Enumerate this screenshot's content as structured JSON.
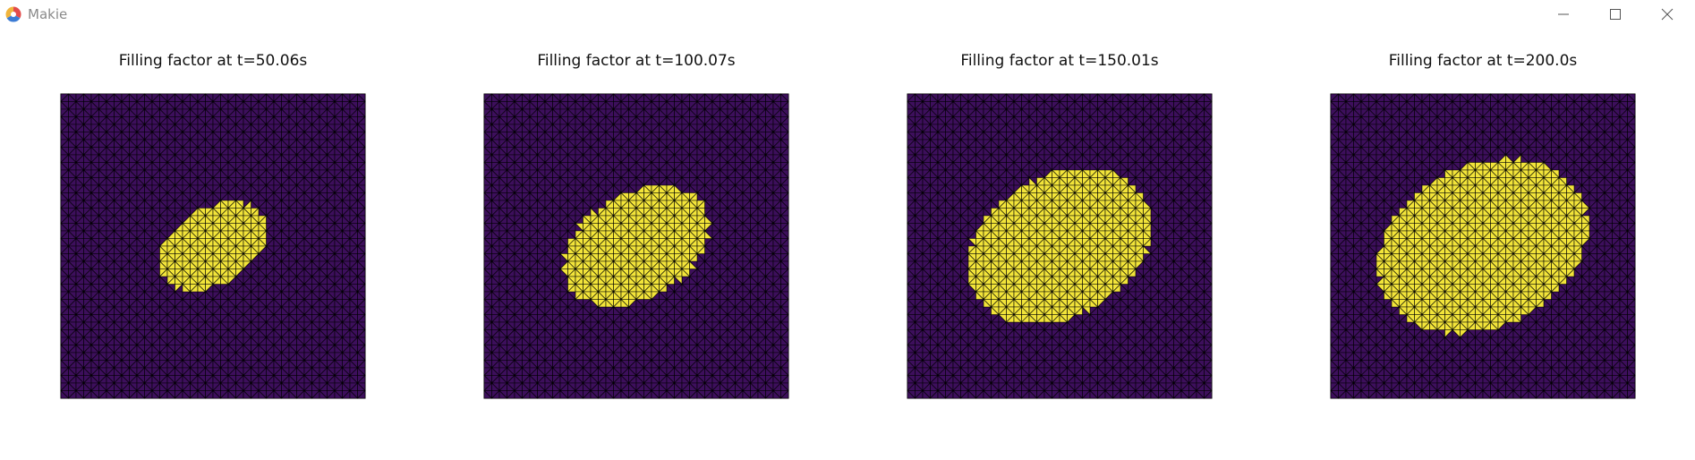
{
  "window": {
    "title": "Makie",
    "logo_icon": "makie-logo-icon",
    "controls": [
      "minimize-icon",
      "maximize-icon",
      "close-icon"
    ]
  },
  "colors": {
    "filled": "#f2e43a",
    "empty": "#3d0f5c",
    "edge": "#000000"
  },
  "panels": [
    {
      "title": "Filling factor at t=50.06s",
      "fill_radius": 0.19,
      "tilt_deg": -32,
      "aspect": 0.66
    },
    {
      "title": "Filling factor at t=100.07s",
      "fill_radius": 0.26,
      "tilt_deg": -30,
      "aspect": 0.66
    },
    {
      "title": "Filling factor at t=150.01s",
      "fill_radius": 0.32,
      "tilt_deg": -28,
      "aspect": 0.72
    },
    {
      "title": "Filling factor at t=200.0s",
      "fill_radius": 0.36,
      "tilt_deg": -25,
      "aspect": 0.74
    }
  ]
}
